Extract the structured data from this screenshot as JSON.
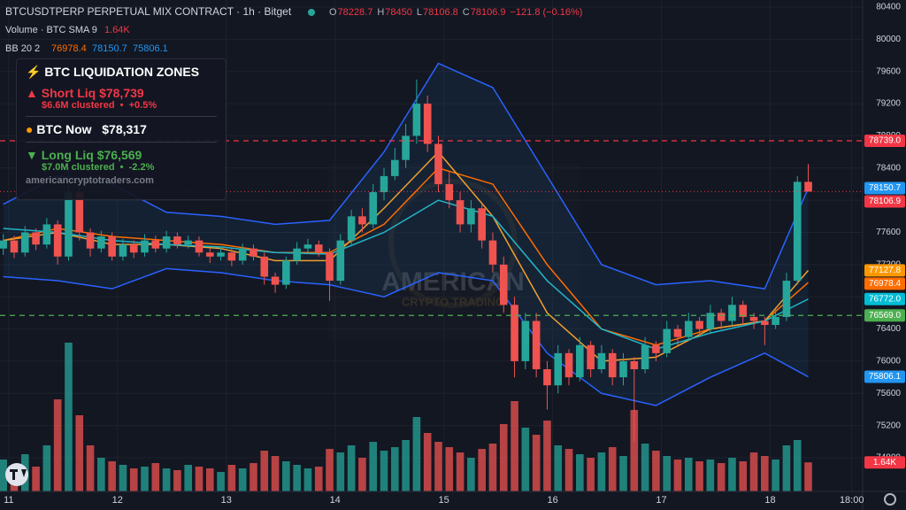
{
  "header": {
    "title": "BTCUSDTPERP PERPETUAL MIX CONTRACT · 1h · Bitget",
    "ohlc_labels": [
      "O",
      "H",
      "L",
      "C"
    ],
    "change": "−121.8 (−0.16%)",
    "volume_label": "Volume · BTC SMA 9",
    "bb_label": "BB 20 2"
  },
  "info_box": {
    "title": "⚡ BTC LIQUIDATION ZONES",
    "short_label": "▲ Short Liq",
    "short_price": "$78,739",
    "short_detail": "$6.6M clustered  •  +0.5%",
    "now_label": "BTC Now",
    "now_price": "$78,317",
    "long_label": "▼ Long Liq",
    "long_price": "$76,569",
    "long_detail": "$7.0M clustered  •  -2.2%",
    "site": "americancryptotraders.com"
  },
  "watermark": {
    "line1": "AMERICAN",
    "line2": "CRYPTO TRADING"
  },
  "chart_data": {
    "type": "candlestick",
    "x": [
      10.95,
      11.05,
      11.15,
      11.25,
      11.35,
      11.45,
      11.55,
      11.65,
      11.75,
      11.85,
      11.95,
      12.05,
      12.15,
      12.25,
      12.35,
      12.45,
      12.55,
      12.65,
      12.75,
      12.85,
      12.95,
      13.05,
      13.15,
      13.25,
      13.35,
      13.45,
      13.55,
      13.65,
      13.75,
      13.85,
      13.95,
      14.05,
      14.15,
      14.25,
      14.35,
      14.45,
      14.55,
      14.65,
      14.75,
      14.85,
      14.95,
      15.05,
      15.15,
      15.25,
      15.35,
      15.45,
      15.55,
      15.65,
      15.75,
      15.85,
      15.95,
      16.05,
      16.15,
      16.25,
      16.35,
      16.45,
      16.55,
      16.65,
      16.75,
      16.85,
      16.95,
      17.05,
      17.15,
      17.25,
      17.35,
      17.45,
      17.55,
      17.65,
      17.75,
      17.85,
      17.95,
      18.05,
      18.15,
      18.25,
      18.35
    ],
    "open": [
      77400,
      77500,
      77350,
      77600,
      77450,
      77700,
      77300,
      78100,
      77600,
      77400,
      77550,
      77300,
      77450,
      77350,
      77500,
      77400,
      77550,
      77450,
      77500,
      77350,
      77300,
      77350,
      77250,
      77400,
      77300,
      77050,
      76950,
      77250,
      77400,
      77450,
      77350,
      77000,
      77500,
      77800,
      77700,
      78100,
      78300,
      78500,
      78800,
      79200,
      78700,
      78200,
      78000,
      77700,
      77900,
      77500,
      77200,
      76700,
      76000,
      76500,
      75900,
      75700,
      76100,
      75800,
      76200,
      75900,
      76100,
      75800,
      76000,
      75900,
      76200,
      76100,
      76400,
      76300,
      76500,
      76400,
      76600,
      76500,
      76700,
      76550,
      76500,
      76450,
      76550,
      77000,
      78228.7
    ],
    "high": [
      77580,
      77560,
      77680,
      77650,
      77780,
      77750,
      78400,
      78150,
      77650,
      77620,
      77600,
      77520,
      77500,
      77580,
      77560,
      77620,
      77600,
      77560,
      77550,
      77400,
      77420,
      77400,
      77460,
      77450,
      77350,
      77100,
      77300,
      77480,
      77520,
      77500,
      77400,
      77580,
      77880,
      77900,
      78200,
      78400,
      78650,
      78950,
      79500,
      79300,
      78800,
      78350,
      78100,
      78000,
      77950,
      77600,
      77300,
      76800,
      76600,
      76600,
      76000,
      76200,
      76150,
      76300,
      76250,
      76200,
      76150,
      76100,
      76050,
      76300,
      76250,
      76500,
      76450,
      76600,
      76550,
      76700,
      76650,
      76800,
      76750,
      76600,
      76550,
      76650,
      77100,
      78300,
      78450
    ],
    "low": [
      77320,
      77280,
      77300,
      77380,
      77400,
      77200,
      77250,
      77500,
      77300,
      77350,
      77250,
      77250,
      77280,
      77300,
      77350,
      77350,
      77400,
      77400,
      77300,
      77220,
      77250,
      77180,
      77200,
      77250,
      76950,
      76850,
      76900,
      77200,
      77350,
      77300,
      76750,
      76950,
      77450,
      77600,
      77650,
      78000,
      78250,
      78400,
      78700,
      78600,
      78100,
      77900,
      77600,
      77600,
      77400,
      77100,
      76600,
      75800,
      75900,
      75800,
      75400,
      75600,
      75700,
      75750,
      75800,
      75850,
      75700,
      75700,
      75000,
      75850,
      76000,
      76050,
      76200,
      76250,
      76300,
      76350,
      76400,
      76450,
      76450,
      76400,
      76200,
      76400,
      76500,
      76950,
      78106.8
    ],
    "close": [
      77500,
      77350,
      77600,
      77450,
      77700,
      77300,
      78100,
      77600,
      77400,
      77550,
      77300,
      77450,
      77350,
      77500,
      77400,
      77550,
      77450,
      77500,
      77350,
      77300,
      77350,
      77250,
      77400,
      77300,
      77050,
      76950,
      77250,
      77400,
      77450,
      77350,
      77000,
      77500,
      77800,
      77700,
      78100,
      78300,
      78500,
      78800,
      79200,
      78700,
      78200,
      78000,
      77700,
      77900,
      77500,
      77200,
      76700,
      76000,
      76500,
      75900,
      75700,
      76100,
      75800,
      76200,
      75900,
      76100,
      75800,
      76000,
      75900,
      76200,
      76100,
      76400,
      76300,
      76500,
      76400,
      76600,
      76500,
      76700,
      76550,
      76500,
      76450,
      76550,
      77000,
      78228.7,
      78106.9
    ],
    "volume": [
      1800,
      1500,
      2100,
      1400,
      2600,
      5200,
      8400,
      4300,
      2600,
      1900,
      1700,
      1500,
      1300,
      1400,
      1600,
      1300,
      1200,
      1500,
      1400,
      1300,
      1100,
      1500,
      1300,
      1600,
      2300,
      2000,
      1700,
      1500,
      1300,
      1400,
      2400,
      2200,
      2600,
      1900,
      2800,
      2300,
      2500,
      2900,
      4200,
      3300,
      2800,
      2500,
      2200,
      1900,
      2400,
      2700,
      3800,
      5100,
      3600,
      3200,
      4000,
      2600,
      2400,
      2100,
      1900,
      2200,
      2500,
      2000,
      4600,
      2700,
      2300,
      2000,
      1800,
      1900,
      1700,
      1800,
      1600,
      1900,
      1700,
      2200,
      2000,
      1800,
      2600,
      2900,
      1640
    ],
    "volume_lim": [
      0,
      10000
    ],
    "volume_tag": {
      "value": 1640,
      "label": "1.64K",
      "color": "#f23645"
    },
    "up_color": "#26a69a",
    "down_color": "#ef5350",
    "xlim": [
      10.92,
      18.85
    ],
    "xticks": [
      11,
      12,
      13,
      14,
      15,
      16,
      17,
      18,
      {
        "value": 18.75,
        "label": "18:00"
      }
    ],
    "ylim": [
      74382,
      80488
    ],
    "yticks": [
      80400,
      80000,
      79600,
      79200,
      78800,
      78400,
      78000,
      77600,
      77200,
      76800,
      76400,
      76000,
      75600,
      75200,
      74800
    ],
    "grid": true,
    "overlay_x": [
      10.95,
      11.45,
      11.95,
      12.45,
      12.95,
      13.45,
      13.95,
      14.45,
      14.95,
      15.45,
      15.95,
      16.45,
      16.95,
      17.45,
      17.95,
      18.35
    ],
    "overlays": [
      {
        "color": "#2962ff",
        "values": [
          77950,
          78300,
          78200,
          77850,
          77800,
          77700,
          77750,
          78600,
          79700,
          79400,
          78300,
          77200,
          76950,
          77000,
          76900,
          78150.7
        ]
      },
      {
        "color": "#ff6d00",
        "values": [
          77500,
          77650,
          77550,
          77500,
          77450,
          77350,
          77350,
          77700,
          78400,
          78200,
          77200,
          76400,
          76200,
          76400,
          76500,
          76978.4
        ]
      },
      {
        "color": "#2962ff",
        "values": [
          77050,
          77000,
          76900,
          77150,
          77100,
          77000,
          76950,
          76800,
          77100,
          77000,
          76100,
          75600,
          75450,
          75800,
          76100,
          75806.1
        ]
      },
      {
        "color": "#f0a030",
        "values": [
          77500,
          77600,
          77450,
          77450,
          77400,
          77250,
          77250,
          77900,
          78600,
          77800,
          76600,
          76000,
          76050,
          76400,
          76500,
          77127.8
        ]
      },
      {
        "color": "#22b5c8",
        "values": [
          77650,
          77600,
          77500,
          77450,
          77420,
          77350,
          77330,
          77600,
          78000,
          77800,
          77000,
          76400,
          76150,
          76350,
          76500,
          76772
        ]
      }
    ],
    "price_tags": [
      {
        "value": 78739,
        "label": "78739.0",
        "color": "#f23645",
        "dashed": true
      },
      {
        "value": 78150.7,
        "color": "#2196f3"
      },
      {
        "value": 78106.9,
        "color": "#f23645",
        "dotted": true
      },
      {
        "value": 77127.8,
        "color": "#ff9800"
      },
      {
        "value": 76978.4,
        "color": "#ff6d00"
      },
      {
        "value": 76772,
        "label": "76772.0",
        "color": "#00bcd4"
      },
      {
        "value": 76569,
        "label": "76569.0",
        "color": "#4caf50",
        "dashed": true
      },
      {
        "value": 75806.1,
        "color": "#2196f3"
      }
    ]
  }
}
